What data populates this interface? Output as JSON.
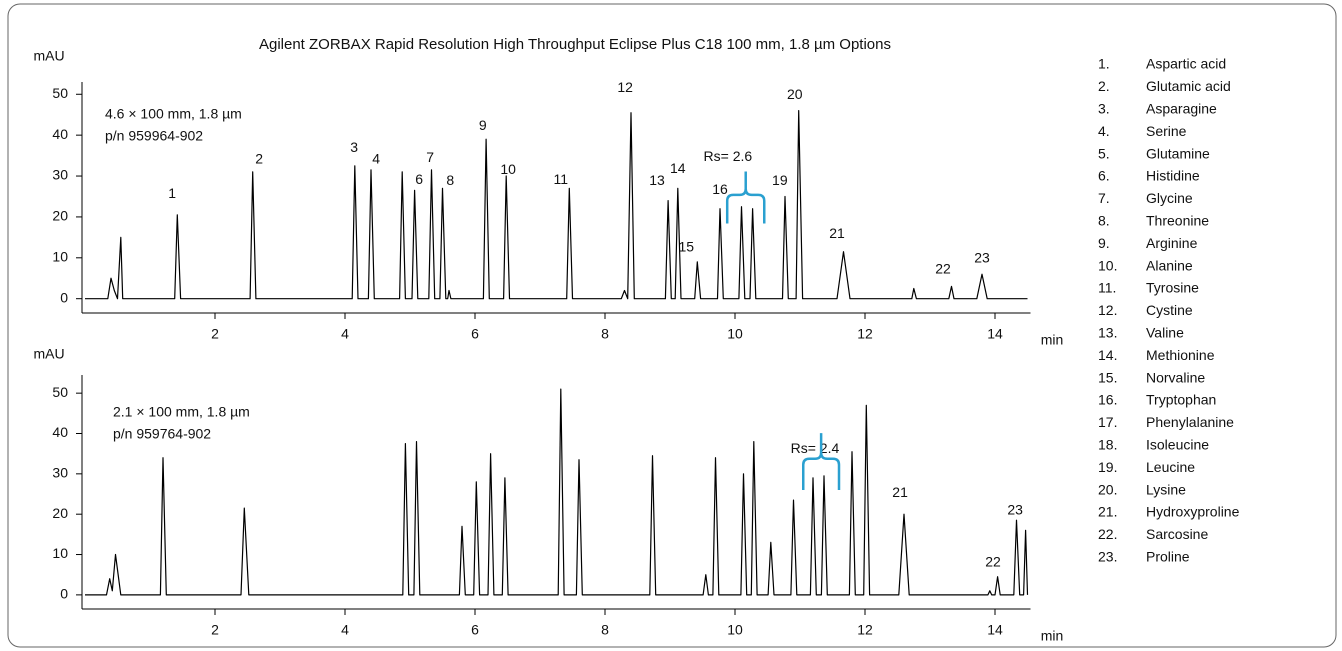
{
  "title": "Agilent ZORBAX Rapid Resolution High Throughput Eclipse Plus C18 100 mm, 1.8 µm Options",
  "chart_data": [
    {
      "type": "line",
      "panel_label": [
        "4.6 × 100 mm, 1.8 µm",
        "p/n 959964-902"
      ],
      "ylabel": "mAU",
      "xlabel": "min",
      "color": "#000000",
      "bracket_color": "#2aa0d0",
      "x": [
        0,
        0.35,
        0.4,
        0.45,
        0.5,
        0.55,
        0.58,
        1.38,
        1.42,
        1.47,
        2.54,
        2.58,
        2.63,
        4.11,
        4.15,
        4.2,
        4.36,
        4.4,
        4.45,
        4.84,
        4.88,
        4.93,
        5.03,
        5.07,
        5.12,
        5.29,
        5.33,
        5.38,
        5.46,
        5.5,
        5.55,
        5.58,
        5.6,
        5.63,
        6.13,
        6.17,
        6.22,
        6.44,
        6.48,
        6.53,
        7.41,
        7.45,
        7.5,
        8.25,
        8.3,
        8.35,
        8.4,
        8.45,
        8.93,
        8.97,
        9.02,
        9.08,
        9.12,
        9.17,
        9.38,
        9.42,
        9.47,
        9.73,
        9.77,
        9.82,
        10.06,
        10.1,
        10.15,
        10.23,
        10.27,
        10.32,
        10.73,
        10.77,
        10.82,
        10.94,
        10.98,
        11.04,
        11.57,
        11.67,
        11.77,
        12.72,
        12.75,
        12.79,
        13.29,
        13.33,
        13.37,
        13.72,
        13.8,
        13.88,
        14.5
      ],
      "values": [
        0,
        0,
        5,
        2,
        0,
        15,
        0,
        0,
        20.5,
        0,
        0,
        31,
        0,
        0,
        32.5,
        0,
        0,
        31.5,
        0,
        0,
        31,
        0,
        0,
        26.5,
        0,
        0,
        31.5,
        0,
        0,
        27,
        0,
        0,
        2,
        0,
        0,
        39,
        0,
        0,
        30,
        0,
        0,
        27,
        0,
        0,
        2,
        0,
        45.5,
        0,
        0,
        24,
        0,
        0,
        27,
        0,
        0,
        9,
        0,
        0,
        22,
        0,
        0,
        22.5,
        0,
        0,
        22,
        0,
        0,
        25,
        0,
        0,
        46,
        0,
        0,
        11.5,
        0,
        0,
        2.5,
        0,
        0,
        3,
        0,
        0,
        6,
        0,
        0
      ],
      "xlim": [
        0,
        14.5
      ],
      "ylim": [
        -3.5,
        53
      ],
      "xticks": [
        2,
        4,
        6,
        8,
        10,
        12,
        14
      ],
      "yticks": [
        0,
        10,
        20,
        30,
        40,
        50
      ],
      "annotations": [
        {
          "text": "1",
          "x": 1.34,
          "y": 25.5
        },
        {
          "text": "2",
          "x": 2.68,
          "y": 34
        },
        {
          "text": "3",
          "x": 4.14,
          "y": 36.8
        },
        {
          "text": "4",
          "x": 4.48,
          "y": 34
        },
        {
          "text": "6",
          "x": 5.14,
          "y": 28.9
        },
        {
          "text": "7",
          "x": 5.31,
          "y": 34.3
        },
        {
          "text": "8",
          "x": 5.62,
          "y": 28.7
        },
        {
          "text": "9",
          "x": 6.12,
          "y": 42.2
        },
        {
          "text": "10",
          "x": 6.51,
          "y": 31.4
        },
        {
          "text": "11",
          "x": 7.32,
          "y": 28.9
        },
        {
          "text": "12",
          "x": 8.31,
          "y": 51.5
        },
        {
          "text": "13",
          "x": 8.8,
          "y": 28.7
        },
        {
          "text": "14",
          "x": 9.12,
          "y": 31.6
        },
        {
          "text": "15",
          "x": 9.25,
          "y": 12.5
        },
        {
          "text": "16",
          "x": 9.77,
          "y": 26.5
        },
        {
          "text": "19",
          "x": 10.69,
          "y": 28.7
        },
        {
          "text": "20",
          "x": 10.92,
          "y": 49.8
        },
        {
          "text": "21",
          "x": 11.57,
          "y": 15.7
        },
        {
          "text": "22",
          "x": 13.2,
          "y": 7.1
        },
        {
          "text": "23",
          "x": 13.8,
          "y": 9.8
        },
        {
          "text": "Rs= 2.6",
          "x": 9.89,
          "y": 34.6
        }
      ],
      "brace": {
        "x": [
          9.88,
          10.45
        ],
        "y": [
          18.4,
          31.1
        ]
      }
    },
    {
      "type": "line",
      "panel_label": [
        "2.1 × 100 mm, 1.8 µm",
        "p/n 959764-902"
      ],
      "ylabel": "mAU",
      "xlabel": "min",
      "color": "#000000",
      "bracket_color": "#2aa0d0",
      "x": [
        0,
        0.33,
        0.38,
        0.42,
        0.47,
        0.55,
        1.16,
        1.2,
        1.25,
        2.4,
        2.45,
        2.52,
        4.89,
        4.93,
        4.98,
        5.06,
        5.1,
        5.15,
        5.76,
        5.8,
        5.85,
        5.98,
        6.02,
        6.07,
        6.2,
        6.24,
        6.29,
        6.42,
        6.46,
        6.51,
        7.28,
        7.32,
        7.37,
        7.56,
        7.6,
        7.65,
        8.69,
        8.73,
        8.78,
        9.51,
        9.55,
        9.59,
        9.66,
        9.7,
        9.75,
        10.09,
        10.13,
        10.18,
        10.25,
        10.29,
        10.34,
        10.51,
        10.55,
        10.6,
        10.86,
        10.9,
        10.95,
        11.16,
        11.2,
        11.25,
        11.33,
        11.37,
        11.42,
        11.76,
        11.8,
        11.85,
        11.98,
        12.02,
        12.07,
        12.52,
        12.6,
        12.68,
        13.89,
        13.92,
        13.95,
        14.0,
        14.04,
        14.08,
        14.29,
        14.33,
        14.38,
        14.44,
        14.47,
        14.5
      ],
      "values": [
        0,
        0,
        4,
        1,
        10,
        0,
        0,
        34,
        0,
        0,
        21.5,
        0,
        0,
        37.5,
        0,
        0,
        38,
        0,
        0,
        17,
        0,
        0,
        28,
        0,
        0,
        35,
        0,
        0,
        29,
        0,
        0,
        51,
        0,
        0,
        33.5,
        0,
        0,
        34.5,
        0,
        0,
        5,
        0,
        0,
        34,
        0,
        0,
        30,
        0,
        0,
        38,
        0,
        0,
        13,
        0,
        0,
        23.5,
        0,
        0,
        29,
        0,
        0,
        29.5,
        0,
        0,
        35.5,
        0,
        0,
        47,
        0,
        0,
        20,
        0,
        0,
        1,
        0,
        0,
        4.5,
        0,
        0,
        18.5,
        0,
        0,
        16,
        0
      ],
      "xlim": [
        0,
        14.5
      ],
      "ylim": [
        -3.5,
        54.5
      ],
      "xticks": [
        2,
        4,
        6,
        8,
        10,
        12,
        14
      ],
      "yticks": [
        0,
        10,
        20,
        30,
        40,
        50
      ],
      "annotations": [
        {
          "text": "21",
          "x": 12.54,
          "y": 25.2
        },
        {
          "text": "22",
          "x": 13.97,
          "y": 7.9
        },
        {
          "text": "23",
          "x": 14.31,
          "y": 20.8
        },
        {
          "text": "Rs= 2.4",
          "x": 11.23,
          "y": 36.1
        }
      ],
      "brace": {
        "x": [
          11.05,
          11.6
        ],
        "y": [
          26,
          40.1
        ]
      }
    }
  ],
  "peak_list": [
    {
      "number": "1.",
      "name": "Aspartic acid"
    },
    {
      "number": "2.",
      "name": "Glutamic acid"
    },
    {
      "number": "3.",
      "name": "Asparagine"
    },
    {
      "number": "4.",
      "name": "Serine"
    },
    {
      "number": "5.",
      "name": "Glutamine"
    },
    {
      "number": "6.",
      "name": "Histidine"
    },
    {
      "number": "7.",
      "name": "Glycine"
    },
    {
      "number": "8.",
      "name": "Threonine"
    },
    {
      "number": "9.",
      "name": "Arginine"
    },
    {
      "number": "10.",
      "name": "Alanine"
    },
    {
      "number": "11.",
      "name": "Tyrosine"
    },
    {
      "number": "12.",
      "name": "Cystine"
    },
    {
      "number": "13.",
      "name": "Valine"
    },
    {
      "number": "14.",
      "name": "Methionine"
    },
    {
      "number": "15.",
      "name": "Norvaline"
    },
    {
      "number": "16.",
      "name": "Tryptophan"
    },
    {
      "number": "17.",
      "name": "Phenylalanine"
    },
    {
      "number": "18.",
      "name": "Isoleucine"
    },
    {
      "number": "19.",
      "name": "Leucine"
    },
    {
      "number": "20.",
      "name": "Lysine"
    },
    {
      "number": "21.",
      "name": "Hydroxyproline"
    },
    {
      "number": "22.",
      "name": "Sarcosine"
    },
    {
      "number": "23.",
      "name": "Proline"
    }
  ]
}
